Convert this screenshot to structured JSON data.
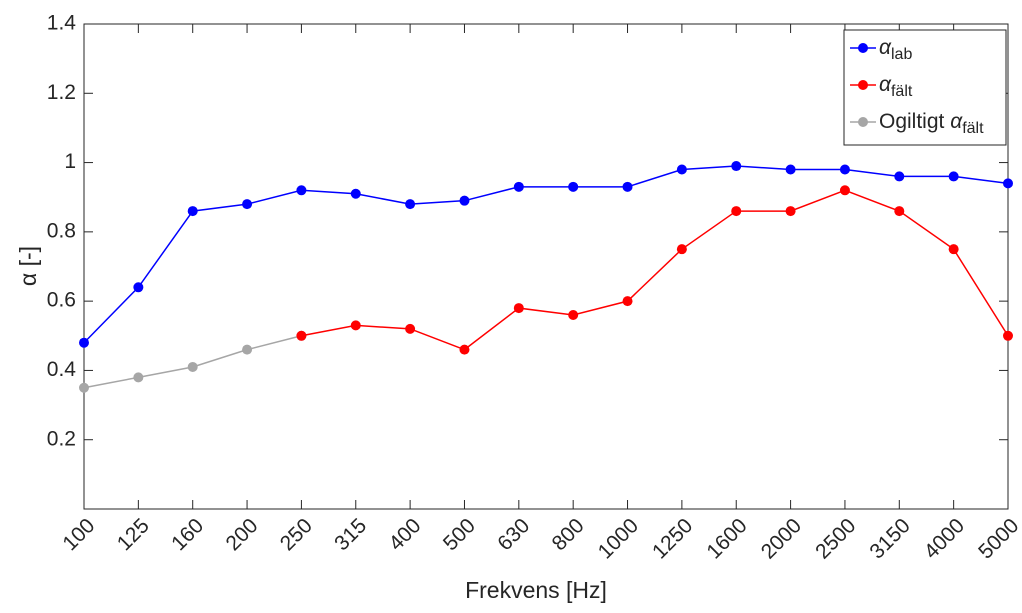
{
  "chart_data": {
    "type": "line",
    "categories": [
      "100",
      "125",
      "160",
      "200",
      "250",
      "315",
      "400",
      "500",
      "630",
      "800",
      "1000",
      "1250",
      "1600",
      "2000",
      "2500",
      "3150",
      "4000",
      "5000"
    ],
    "series": [
      {
        "name": "αlab",
        "color": "#0000ff",
        "values": [
          0.48,
          0.64,
          0.86,
          0.88,
          0.92,
          0.91,
          0.88,
          0.89,
          0.93,
          0.93,
          0.93,
          0.98,
          0.99,
          0.98,
          0.98,
          0.96,
          0.96,
          0.94
        ]
      },
      {
        "name": "αfält",
        "color": "#ff0000",
        "values": [
          null,
          null,
          null,
          null,
          0.5,
          0.53,
          0.52,
          0.46,
          0.58,
          0.56,
          0.6,
          0.75,
          0.86,
          0.86,
          0.92,
          0.86,
          0.75,
          0.5
        ]
      },
      {
        "name": "Ogiltigt αfält",
        "color": "#a6a6a6",
        "values": [
          0.35,
          0.38,
          0.41,
          0.46,
          0.5,
          null,
          null,
          null,
          null,
          null,
          null,
          null,
          null,
          null,
          null,
          null,
          null,
          null
        ]
      }
    ],
    "xlabel": "Frekvens [Hz]",
    "ylabel": "α [-]",
    "ylim": [
      0,
      1.4
    ],
    "yticks": [
      0.2,
      0.4,
      0.6,
      0.8,
      1,
      1.2,
      1.4
    ],
    "legend": "top-right"
  }
}
